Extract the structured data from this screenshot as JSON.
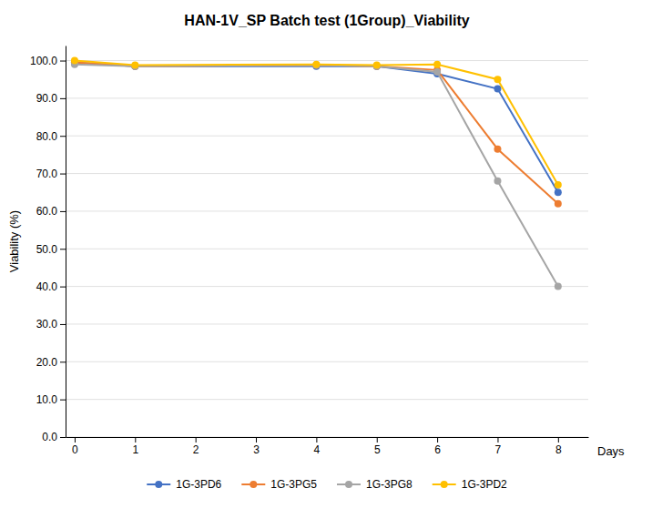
{
  "chart_data": {
    "type": "line",
    "title": "HAN-1V_SP Batch test (1Group)_Viability",
    "xlabel": "Days",
    "ylabel": "Viability (%)",
    "x": [
      0,
      1,
      4,
      5,
      6,
      7,
      8
    ],
    "series": [
      {
        "name": "1G-3PD6",
        "color": "#4472C4",
        "values": [
          99.5,
          98.5,
          98.5,
          98.5,
          96.5,
          92.5,
          65.0
        ]
      },
      {
        "name": "1G-3PG5",
        "color": "#ED7D31",
        "values": [
          99.5,
          98.5,
          98.8,
          98.5,
          97.5,
          76.5,
          62.0
        ]
      },
      {
        "name": "1G-3PG8",
        "color": "#A5A5A5",
        "values": [
          99.0,
          98.5,
          98.8,
          98.5,
          97.0,
          68.0,
          40.0
        ]
      },
      {
        "name": "1G-3PD2",
        "color": "#FFC000",
        "values": [
          100.0,
          98.8,
          99.0,
          98.8,
          99.0,
          95.0,
          67.0
        ]
      }
    ],
    "xlim": [
      -0.15,
      8.5
    ],
    "xticks": [
      0,
      1,
      2,
      3,
      4,
      5,
      6,
      7,
      8
    ],
    "ylim": [
      0,
      104
    ],
    "yticks": [
      {
        "value": 0,
        "label": "0.0"
      },
      {
        "value": 10.0,
        "label": "10.0"
      },
      {
        "value": 20.0,
        "label": "20.0"
      },
      {
        "value": 30.0,
        "label": "30.0"
      },
      {
        "value": 40.0,
        "label": "40.0"
      },
      {
        "value": 50.0,
        "label": "50.0"
      },
      {
        "value": 60.0,
        "label": "60.0"
      },
      {
        "value": 70.0,
        "label": "70.0"
      },
      {
        "value": 80.0,
        "label": "80.0"
      },
      {
        "value": 90.0,
        "label": "90.0"
      },
      {
        "value": 100.0,
        "label": "100.0"
      }
    ],
    "grid": "y",
    "legend": "bottom",
    "marker": "circle"
  }
}
